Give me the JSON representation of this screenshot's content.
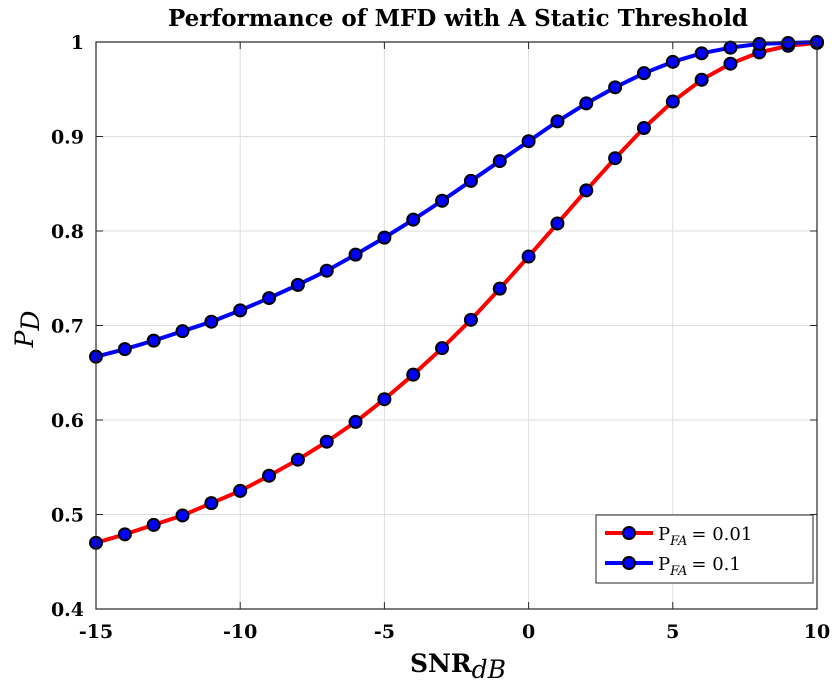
{
  "chart_data": {
    "type": "line",
    "title": "Performance of MFD with A Static Threshold",
    "xlabel": {
      "main": "SNR",
      "sub": "dB"
    },
    "ylabel": {
      "main": "P",
      "sub": "D"
    },
    "xlim": [
      -15,
      10
    ],
    "ylim": [
      0.4,
      1
    ],
    "xticks": [
      -15,
      -10,
      -5,
      0,
      5,
      10
    ],
    "yticks": [
      0.4,
      0.5,
      0.6,
      0.7,
      0.8,
      0.9,
      1
    ],
    "xtick_labels": [
      "-15",
      "-10",
      "-5",
      "0",
      "5",
      "10"
    ],
    "ytick_labels": [
      "0.4",
      "0.5",
      "0.6",
      "0.7",
      "0.8",
      "0.9",
      "1"
    ],
    "grid": true,
    "legend_position": "bottom-right",
    "x": [
      -15,
      -14,
      -13,
      -12,
      -11,
      -10,
      -9,
      -8,
      -7,
      -6,
      -5,
      -4,
      -3,
      -2,
      -1,
      0,
      1,
      2,
      3,
      4,
      5,
      6,
      7,
      8,
      9,
      10
    ],
    "series": [
      {
        "name": "P_FA = 0.01",
        "legend_main": "P",
        "legend_sub": "FA",
        "legend_value": "= 0.01",
        "color": "#ff0000",
        "marker_color": "#0000ff",
        "values": [
          0.47,
          0.479,
          0.489,
          0.499,
          0.512,
          0.525,
          0.541,
          0.558,
          0.577,
          0.598,
          0.622,
          0.648,
          0.676,
          0.706,
          0.739,
          0.773,
          0.808,
          0.843,
          0.877,
          0.909,
          0.937,
          0.96,
          0.977,
          0.989,
          0.996,
          0.999
        ]
      },
      {
        "name": "P_FA = 0.1",
        "legend_main": "P",
        "legend_sub": "FA",
        "legend_value": "= 0.1",
        "color": "#0000ff",
        "marker_color": "#0000ff",
        "values": [
          0.667,
          0.675,
          0.684,
          0.694,
          0.704,
          0.716,
          0.729,
          0.743,
          0.758,
          0.775,
          0.793,
          0.812,
          0.832,
          0.853,
          0.874,
          0.895,
          0.916,
          0.935,
          0.952,
          0.967,
          0.979,
          0.988,
          0.994,
          0.998,
          0.999,
          1.0
        ]
      }
    ]
  }
}
